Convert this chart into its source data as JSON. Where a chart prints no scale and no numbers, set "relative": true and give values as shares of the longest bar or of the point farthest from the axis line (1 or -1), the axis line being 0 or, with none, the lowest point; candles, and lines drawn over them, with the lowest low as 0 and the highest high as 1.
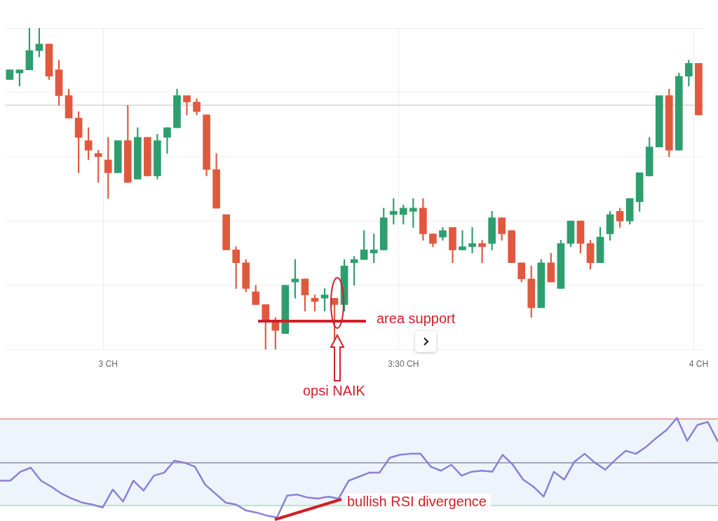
{
  "chart_data": [
    {
      "type": "candlestick",
      "relative": true,
      "grid": true,
      "categories": [
        null,
        null,
        null,
        null,
        null,
        null,
        null,
        null,
        null,
        null,
        "3 CH",
        null,
        null,
        null,
        null,
        null,
        null,
        null,
        null,
        null,
        null,
        null,
        null,
        null,
        null,
        null,
        null,
        null,
        null,
        null,
        null,
        null,
        null,
        null,
        null,
        null,
        null,
        null,
        null,
        null,
        "3:30 CH",
        null,
        null,
        null,
        null,
        null,
        null,
        null,
        null,
        null,
        null,
        null,
        null,
        null,
        null,
        null,
        null,
        null,
        null,
        null,
        null,
        null,
        null,
        null,
        null,
        null,
        null,
        null,
        null,
        null,
        "4 CH"
      ],
      "ohlc": [
        [
          0.84,
          0.87,
          0.84,
          0.87
        ],
        [
          0.86,
          0.87,
          0.82,
          0.87
        ],
        [
          0.87,
          1.0,
          0.87,
          0.93
        ],
        [
          0.93,
          1.0,
          0.91,
          0.95
        ],
        [
          0.95,
          0.95,
          0.84,
          0.85
        ],
        [
          0.87,
          0.9,
          0.76,
          0.79
        ],
        [
          0.79,
          0.81,
          0.72,
          0.72
        ],
        [
          0.72,
          0.74,
          0.55,
          0.66
        ],
        [
          0.65,
          0.69,
          0.59,
          0.62
        ],
        [
          0.61,
          0.62,
          0.52,
          0.6
        ],
        [
          0.59,
          0.66,
          0.47,
          0.55
        ],
        [
          0.55,
          0.65,
          0.55,
          0.65
        ],
        [
          0.65,
          0.76,
          0.52,
          0.52
        ],
        [
          0.53,
          0.69,
          0.53,
          0.66
        ],
        [
          0.66,
          0.66,
          0.54,
          0.54
        ],
        [
          0.54,
          0.67,
          0.53,
          0.65
        ],
        [
          0.66,
          0.69,
          0.61,
          0.69
        ],
        [
          0.69,
          0.81,
          0.69,
          0.79
        ],
        [
          0.79,
          0.79,
          0.73,
          0.77
        ],
        [
          0.77,
          0.78,
          0.73,
          0.74
        ],
        [
          0.73,
          0.73,
          0.54,
          0.56
        ],
        [
          0.56,
          0.61,
          0.44,
          0.44
        ],
        [
          0.42,
          0.42,
          0.31,
          0.31
        ],
        [
          0.31,
          0.32,
          0.19,
          0.27
        ],
        [
          0.27,
          0.28,
          0.18,
          0.19
        ],
        [
          0.18,
          0.2,
          0.14,
          0.14
        ],
        [
          0.14,
          0.14,
          0,
          0.09
        ],
        [
          0.09,
          0.1,
          0,
          0.06
        ],
        [
          0.05,
          0.2,
          0.05,
          0.2
        ],
        [
          0.21,
          0.28,
          0.16,
          0.22
        ],
        [
          0.22,
          0.22,
          0.12,
          0.17
        ],
        [
          0.16,
          0.17,
          0.12,
          0.15
        ],
        [
          0.16,
          0.19,
          0.12,
          0.17
        ],
        [
          0.16,
          0.16,
          0.03,
          0.14
        ],
        [
          0.14,
          0.28,
          0.12,
          0.26
        ],
        [
          0.27,
          0.29,
          0.2,
          0.28
        ],
        [
          0.28,
          0.37,
          0.28,
          0.31
        ],
        [
          0.3,
          0.36,
          0.27,
          0.31
        ],
        [
          0.31,
          0.44,
          0.31,
          0.41
        ],
        [
          0.42,
          0.47,
          0.39,
          0.43
        ],
        [
          0.42,
          0.45,
          0.39,
          0.44
        ],
        [
          0.43,
          0.47,
          0.38,
          0.44
        ],
        [
          0.44,
          0.47,
          0.34,
          0.36
        ],
        [
          0.36,
          0.36,
          0.32,
          0.33
        ],
        [
          0.35,
          0.38,
          0.34,
          0.37
        ],
        [
          0.38,
          0.38,
          0.27,
          0.31
        ],
        [
          0.31,
          0.37,
          0.31,
          0.32
        ],
        [
          0.32,
          0.38,
          0.3,
          0.33
        ],
        [
          0.33,
          0.34,
          0.27,
          0.32
        ],
        [
          0.33,
          0.43,
          0.31,
          0.41
        ],
        [
          0.41,
          0.41,
          0.34,
          0.36
        ],
        [
          0.37,
          0.37,
          0.27,
          0.27
        ],
        [
          0.27,
          0.27,
          0.21,
          0.22
        ],
        [
          0.22,
          0.26,
          0.1,
          0.13
        ],
        [
          0.13,
          0.28,
          0.13,
          0.27
        ],
        [
          0.27,
          0.3,
          0.21,
          0.21
        ],
        [
          0.19,
          0.34,
          0.19,
          0.33
        ],
        [
          0.33,
          0.4,
          0.32,
          0.4
        ],
        [
          0.4,
          0.4,
          0.3,
          0.33
        ],
        [
          0.33,
          0.34,
          0.25,
          0.27
        ],
        [
          0.27,
          0.38,
          0.27,
          0.35
        ],
        [
          0.36,
          0.43,
          0.34,
          0.42
        ],
        [
          0.43,
          0.44,
          0.38,
          0.4
        ],
        [
          0.4,
          0.47,
          0.39,
          0.47
        ],
        [
          0.46,
          0.55,
          0.43,
          0.55
        ],
        [
          0.54,
          0.66,
          0.54,
          0.63
        ],
        [
          0.63,
          0.79,
          0.63,
          0.79
        ],
        [
          0.79,
          0.81,
          0.6,
          0.62
        ],
        [
          0.62,
          0.86,
          0.62,
          0.85
        ],
        [
          0.85,
          0.9,
          0.82,
          0.89
        ],
        [
          0.89,
          0.89,
          0.73,
          0.73
        ]
      ],
      "colors": [
        "#2e9e6e",
        "#2e9e6e",
        "#2e9e6e",
        "#2e9e6e",
        "#e0593e",
        "#e0593e",
        "#e0593e",
        "#e0593e",
        "#e0593e",
        "#e0593e",
        "#e0593e",
        "#2e9e6e",
        "#e0593e",
        "#2e9e6e",
        "#e0593e",
        "#2e9e6e",
        "#2e9e6e",
        "#2e9e6e",
        "#e0593e",
        "#e0593e",
        "#e0593e",
        "#e0593e",
        "#e0593e",
        "#e0593e",
        "#e0593e",
        "#e0593e",
        "#e0593e",
        "#e0593e",
        "#2e9e6e",
        "#2e9e6e",
        "#e0593e",
        "#e0593e",
        "#2e9e6e",
        "#e0593e",
        "#2e9e6e",
        "#2e9e6e",
        "#2e9e6e",
        "#2e9e6e",
        "#2e9e6e",
        "#2e9e6e",
        "#2e9e6e",
        "#2e9e6e",
        "#e0593e",
        "#e0593e",
        "#2e9e6e",
        "#e0593e",
        "#2e9e6e",
        "#2e9e6e",
        "#e0593e",
        "#2e9e6e",
        "#e0593e",
        "#e0593e",
        "#e0593e",
        "#e0593e",
        "#2e9e6e",
        "#e0593e",
        "#2e9e6e",
        "#2e9e6e",
        "#e0593e",
        "#e0593e",
        "#2e9e6e",
        "#2e9e6e",
        "#e0593e",
        "#2e9e6e",
        "#2e9e6e",
        "#2e9e6e",
        "#2e9e6e",
        "#e0593e",
        "#2e9e6e",
        "#2e9e6e",
        "#e0593e"
      ],
      "ref_lines": [
        {
          "axis": "y",
          "value": 0.76,
          "color": "#d4d4d4"
        }
      ],
      "annotations": [
        "area support",
        "opsi NAIK"
      ]
    },
    {
      "type": "line",
      "relative": true,
      "tick_labels": false,
      "categories": [
        null,
        null,
        null,
        null,
        null,
        null,
        null,
        null,
        null,
        null,
        null,
        null,
        null,
        null,
        null,
        null,
        null,
        null,
        null,
        null,
        null,
        null,
        null,
        null,
        null,
        null,
        null,
        null,
        null,
        null,
        null,
        null,
        null,
        null,
        null,
        null,
        null,
        null,
        null,
        null,
        null,
        null,
        null,
        null,
        null,
        null,
        null,
        null,
        null,
        null,
        null,
        null,
        null,
        null,
        null,
        null,
        null,
        null,
        null,
        null,
        null,
        null,
        null,
        null,
        null,
        null,
        null,
        null,
        null,
        null,
        null
      ],
      "series": [
        {
          "color": "#8d7fd6",
          "values": [
            0.37,
            0.37,
            0.46,
            0.5,
            0.37,
            0.31,
            0.24,
            0.19,
            0.15,
            0.13,
            0.1,
            0.28,
            0.16,
            0.37,
            0.27,
            0.42,
            0.45,
            0.57,
            0.55,
            0.51,
            0.33,
            0.24,
            0.15,
            0.13,
            0.07,
            0.05,
            0.02,
            0,
            0.22,
            0.23,
            0.2,
            0.19,
            0.21,
            0.19,
            0.37,
            0.41,
            0.45,
            0.45,
            0.6,
            0.63,
            0.64,
            0.64,
            0.51,
            0.47,
            0.53,
            0.42,
            0.46,
            0.47,
            0.46,
            0.63,
            0.53,
            0.38,
            0.31,
            0.21,
            0.46,
            0.38,
            0.56,
            0.64,
            0.55,
            0.48,
            0.58,
            0.67,
            0.64,
            0.71,
            0.8,
            0.88,
            1,
            0.77,
            0.93,
            0.96,
            0.76
          ]
        }
      ],
      "ref_lines": [
        {
          "axis": "y",
          "value": 0.99,
          "color": "#e08a80"
        },
        {
          "axis": "y",
          "value": 0.55,
          "color": "#8c8aa8"
        },
        {
          "axis": "y",
          "value": 0.12,
          "color": "#a8dcc0"
        }
      ],
      "bands": [
        {
          "axis": "y",
          "from": 0.12,
          "to": 0.99,
          "color": "#eef4fb"
        }
      ],
      "annotations": [
        "bullish RSI divergence"
      ]
    }
  ]
}
